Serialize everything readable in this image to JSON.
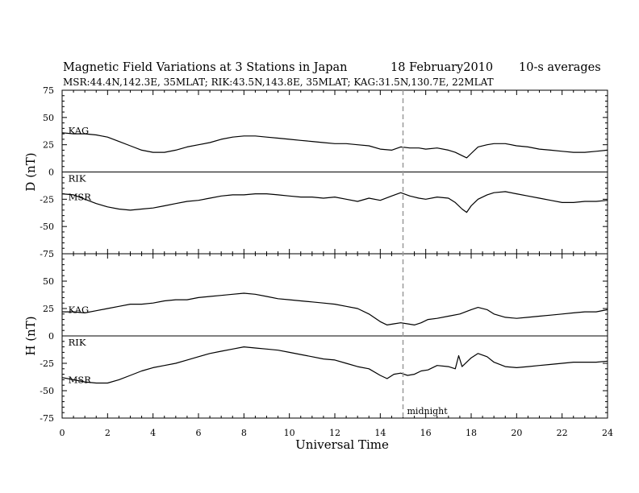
{
  "chart_data": {
    "type": "line",
    "title": "Magnetic Field Variations at 3 Stations in Japan",
    "date": "18  February2010",
    "averaging": "10-s averages",
    "subtitle": "MSR:44.4N,142.3E, 35MLAT;  RIK:43.5N,143.8E, 35MLAT;  KAG:31.5N,130.7E, 22MLAT",
    "xlabel": "Universal Time",
    "xlim": [
      0,
      24
    ],
    "x_ticks": [
      "0",
      "2",
      "4",
      "6",
      "8",
      "10",
      "12",
      "14",
      "16",
      "18",
      "20",
      "22",
      "24"
    ],
    "annotation": {
      "x": 15,
      "label": "midnight"
    },
    "panels": [
      {
        "ylabel": "D (nT)",
        "ylim": [
          -75,
          75
        ],
        "y_ticks": [
          "75",
          "50",
          "25",
          "0",
          "-25",
          "-50",
          "-75"
        ],
        "station_labels": [
          {
            "text": "KAG",
            "x": 0.2,
            "y": 38
          },
          {
            "text": "RIK",
            "x": 0.2,
            "y": -6
          },
          {
            "text": "MSR",
            "x": 0.2,
            "y": -23
          }
        ],
        "series": [
          {
            "name": "KAG",
            "x": [
              0,
              0.5,
              1,
              1.5,
              2,
              2.5,
              3,
              3.5,
              4,
              4.5,
              5,
              5.5,
              6,
              6.5,
              7,
              7.5,
              8,
              8.5,
              9,
              9.5,
              10,
              10.5,
              11,
              11.5,
              12,
              12.5,
              13,
              13.5,
              14,
              14.5,
              14.9,
              15.3,
              15.7,
              16,
              16.5,
              17,
              17.3,
              17.6,
              17.8,
              18,
              18.3,
              18.7,
              19,
              19.5,
              20,
              20.5,
              21,
              21.5,
              22,
              22.5,
              23,
              23.5,
              24
            ],
            "y": [
              36,
              35,
              35,
              34,
              32,
              28,
              24,
              20,
              18,
              18,
              20,
              23,
              25,
              27,
              30,
              32,
              33,
              33,
              32,
              31,
              30,
              29,
              28,
              27,
              26,
              26,
              25,
              24,
              21,
              20,
              23,
              22,
              22,
              21,
              22,
              20,
              18,
              15,
              13,
              17,
              23,
              25,
              26,
              26,
              24,
              23,
              21,
              20,
              19,
              18,
              18,
              19,
              20
            ]
          },
          {
            "name": "RIK",
            "x": [
              0,
              24
            ],
            "y": [
              0,
              0
            ]
          },
          {
            "name": "MSR",
            "x": [
              0,
              0.5,
              1,
              1.5,
              2,
              2.5,
              3,
              3.5,
              4,
              4.5,
              5,
              5.5,
              6,
              6.5,
              7,
              7.5,
              8,
              8.5,
              9,
              9.5,
              10,
              10.5,
              11,
              11.5,
              12,
              12.5,
              13,
              13.5,
              14,
              14.5,
              14.9,
              15.3,
              15.7,
              16,
              16.5,
              17,
              17.3,
              17.6,
              17.8,
              18,
              18.3,
              18.7,
              19,
              19.5,
              20,
              20.5,
              21,
              21.5,
              22,
              22.5,
              23,
              23.5,
              24
            ],
            "y": [
              -20,
              -21,
              -25,
              -29,
              -32,
              -34,
              -35,
              -34,
              -33,
              -31,
              -29,
              -27,
              -26,
              -24,
              -22,
              -21,
              -21,
              -20,
              -20,
              -21,
              -22,
              -23,
              -23,
              -24,
              -23,
              -25,
              -27,
              -24,
              -26,
              -22,
              -19,
              -22,
              -24,
              -25,
              -23,
              -24,
              -28,
              -34,
              -37,
              -31,
              -25,
              -21,
              -19,
              -18,
              -20,
              -22,
              -24,
              -26,
              -28,
              -28,
              -27,
              -27,
              -26
            ]
          }
        ]
      },
      {
        "ylabel": "H (nT)",
        "ylim": [
          -75,
          75
        ],
        "y_ticks": [
          "75",
          "50",
          "25",
          "0",
          "-25",
          "-50",
          "-75"
        ],
        "station_labels": [
          {
            "text": "KAG",
            "x": 0.2,
            "y": 24
          },
          {
            "text": "RIK",
            "x": 0.2,
            "y": -6
          },
          {
            "text": "MSR",
            "x": 0.2,
            "y": -40
          }
        ],
        "series": [
          {
            "name": "KAG",
            "x": [
              0,
              0.5,
              1,
              1.5,
              2,
              2.5,
              3,
              3.5,
              4,
              4.5,
              5,
              5.5,
              6,
              6.5,
              7,
              7.5,
              8,
              8.5,
              9,
              9.5,
              10,
              10.5,
              11,
              11.5,
              12,
              12.5,
              13,
              13.5,
              14,
              14.3,
              14.6,
              14.9,
              15.2,
              15.5,
              15.8,
              16.1,
              16.5,
              17,
              17.5,
              18,
              18.3,
              18.7,
              19,
              19.5,
              20,
              20.5,
              21,
              21.5,
              22,
              22.5,
              23,
              23.5,
              24
            ],
            "y": [
              22,
              22,
              21,
              23,
              25,
              27,
              29,
              29,
              30,
              32,
              33,
              33,
              35,
              36,
              37,
              38,
              39,
              38,
              36,
              34,
              33,
              32,
              31,
              30,
              29,
              27,
              25,
              20,
              13,
              10,
              11,
              12,
              11,
              10,
              12,
              15,
              16,
              18,
              20,
              24,
              26,
              24,
              20,
              17,
              16,
              17,
              18,
              19,
              20,
              21,
              22,
              22,
              24
            ]
          },
          {
            "name": "RIK",
            "x": [
              0,
              24
            ],
            "y": [
              0,
              0
            ]
          },
          {
            "name": "MSR",
            "x": [
              0,
              0.5,
              1,
              1.5,
              2,
              2.5,
              3,
              3.5,
              4,
              4.5,
              5,
              5.5,
              6,
              6.5,
              7,
              7.5,
              8,
              8.5,
              9,
              9.5,
              10,
              10.5,
              11,
              11.5,
              12,
              12.5,
              13,
              13.5,
              14,
              14.3,
              14.6,
              14.9,
              15.2,
              15.5,
              15.8,
              16.1,
              16.5,
              17,
              17.3,
              17.45,
              17.6,
              18,
              18.3,
              18.7,
              19,
              19.5,
              20,
              20.5,
              21,
              21.5,
              22,
              22.5,
              23,
              23.5,
              24
            ],
            "y": [
              -38,
              -40,
              -42,
              -43,
              -43,
              -40,
              -36,
              -32,
              -29,
              -27,
              -25,
              -22,
              -19,
              -16,
              -14,
              -12,
              -10,
              -11,
              -12,
              -13,
              -15,
              -17,
              -19,
              -21,
              -22,
              -25,
              -28,
              -30,
              -36,
              -39,
              -35,
              -34,
              -36,
              -35,
              -32,
              -31,
              -27,
              -28,
              -30,
              -18,
              -28,
              -20,
              -16,
              -19,
              -24,
              -28,
              -29,
              -28,
              -27,
              -26,
              -25,
              -24,
              -24,
              -24,
              -23
            ]
          }
        ]
      }
    ]
  }
}
